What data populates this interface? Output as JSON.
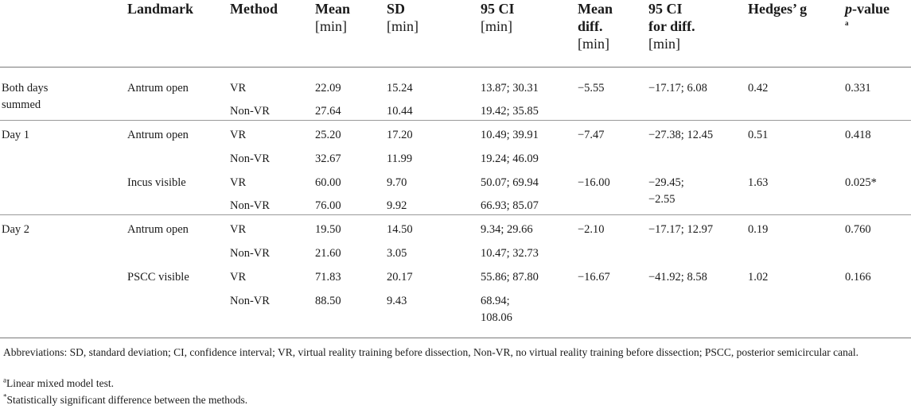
{
  "headers": {
    "landmark": "Landmark",
    "method": "Method",
    "mean_1": "Mean",
    "mean_2": "[min]",
    "sd_1": "SD",
    "sd_2": "[min]",
    "ci_1": "95 CI",
    "ci_2": "[min]",
    "meandiff_1": "Mean",
    "meandiff_2": "diff.",
    "meandiff_3": "[min]",
    "cidiff_1": "95 CI",
    "cidiff_2": "for diff.",
    "cidiff_3": "[min]",
    "hedges": "Hedges’ g",
    "pvalue_p": "p",
    "pvalue_rest": "-value",
    "pvalue_sup": "a"
  },
  "rows": [
    {
      "group_1": "Both days",
      "group_2": "summed",
      "landmark": "Antrum open",
      "method": "VR",
      "mean": "22.09",
      "sd": "15.24",
      "ci": "13.87; 30.31",
      "meandiff": "−5.55",
      "cidiff": "−17.17; 6.08",
      "hedges": "0.42",
      "p": "0.331"
    },
    {
      "method": "Non-VR",
      "mean": "27.64",
      "sd": "10.44",
      "ci": "19.42; 35.85"
    },
    {
      "group_1": "Day 1",
      "landmark": "Antrum open",
      "method": "VR",
      "mean": "25.20",
      "sd": "17.20",
      "ci": "10.49; 39.91",
      "meandiff": "−7.47",
      "cidiff": "−27.38; 12.45",
      "hedges": "0.51",
      "p": "0.418"
    },
    {
      "method": "Non-VR",
      "mean": "32.67",
      "sd": "11.99",
      "ci": "19.24; 46.09"
    },
    {
      "landmark": "Incus visible",
      "method": "VR",
      "mean": "60.00",
      "sd": "9.70",
      "ci": "50.07; 69.94",
      "meandiff": "−16.00",
      "cidiff_1": "−29.45;",
      "cidiff_2": "−2.55",
      "hedges": "1.63",
      "p": "0.025*"
    },
    {
      "method": "Non-VR",
      "mean": "76.00",
      "sd": "9.92",
      "ci": "66.93; 85.07"
    },
    {
      "group_1": "Day 2",
      "landmark": "Antrum open",
      "method": "VR",
      "mean": "19.50",
      "sd": "14.50",
      "ci": "9.34; 29.66",
      "meandiff": "−2.10",
      "cidiff": "−17.17; 12.97",
      "hedges": "0.19",
      "p": "0.760"
    },
    {
      "method": "Non-VR",
      "mean": "21.60",
      "sd": "3.05",
      "ci": "10.47; 32.73"
    },
    {
      "landmark": "PSCC visible",
      "method": "VR",
      "mean": "71.83",
      "sd": "20.17",
      "ci": "55.86; 87.80",
      "meandiff": "−16.67",
      "cidiff": "−41.92; 8.58",
      "hedges": "1.02",
      "p": "0.166"
    },
    {
      "method": "Non-VR",
      "mean": "88.50",
      "sd": "9.43",
      "ci_1": "68.94;",
      "ci_2": "108.06"
    }
  ],
  "footnotes": {
    "abbrev": "Abbreviations: SD, standard deviation; CI, confidence interval; VR, virtual reality training before dissection, Non-VR, no virtual reality training before dissection; PSCC, posterior semicircular canal.",
    "a_mark": "a",
    "a_text": "Linear mixed model test.",
    "star_mark": "*",
    "star_text": "Statistically significant difference between the methods."
  }
}
